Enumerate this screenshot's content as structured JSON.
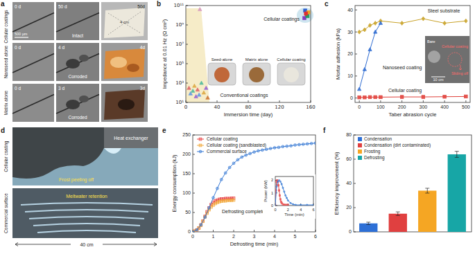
{
  "figure": {
    "panel_labels": [
      "a",
      "b",
      "c",
      "d",
      "e",
      "f"
    ],
    "panel_a": {
      "row_labels": [
        "Cellular coatings",
        "Nanoseed alone",
        "Matrix alone"
      ],
      "rows": [
        [
          "0 d",
          "50 d",
          "Intact",
          "50d"
        ],
        [
          "0 d",
          "4 d",
          "Corroded",
          "4d"
        ],
        [
          "0 d",
          "3 d",
          "Corroded",
          "3d"
        ]
      ],
      "scale_bars": [
        "500 µm",
        "4 cm"
      ]
    },
    "panel_d": {
      "row_labels": [
        "Cellular coating",
        "Commercial surface"
      ],
      "annotations": [
        "Heat exchanger",
        "Frost peeling off",
        "Meltwater retention"
      ],
      "scale_bar": "40 cm"
    }
  },
  "chart_data": [
    {
      "type": "scatter",
      "x_label": "Immersion time (day)",
      "y_label": "Impedance at 0.01 Hz (Ω cm²)",
      "log": "y",
      "xlim": [
        0,
        160
      ],
      "xticks": [
        0,
        40,
        80,
        120,
        160
      ],
      "ylim": [
        10,
        100000000000.0
      ],
      "yticks": [
        {
          "value": 10,
          "label": "10¹"
        },
        {
          "value": 1000,
          "label": "10³"
        },
        {
          "value": 100000,
          "label": "10⁵"
        },
        {
          "value": 10000000,
          "label": "10⁷"
        },
        {
          "value": 1000000000,
          "label": "10⁹"
        },
        {
          "value": 100000000000,
          "label": "10¹¹"
        }
      ],
      "annotations": [
        "Seed-alone",
        "Matrix alone",
        "Cellular coating"
      ],
      "series": [
        {
          "name": "Conventional coatings",
          "marker": "triangle",
          "colors": [
            "#d9a0c0",
            "#e07070",
            "#70a0e0",
            "#60c0a0",
            "#e0b050",
            "#a070d0",
            "#e07070",
            "#70a0e0",
            "#60c0a0",
            "#e0b050",
            "#a070d0",
            "#d08040"
          ],
          "x": [
            18,
            4,
            6,
            9,
            11,
            13,
            15,
            17,
            20,
            23,
            26,
            28
          ],
          "values": [
            40000000000,
            300,
            80,
            150,
            500,
            40,
            200,
            60,
            1000,
            100,
            300,
            30
          ]
        },
        {
          "name": "Cellular coatings",
          "marker": "square",
          "colors": [
            "#3060d0",
            "#e03030",
            "#f0a020",
            "#8040c0",
            "#20a060",
            "#e03030"
          ],
          "x": [
            153,
            155,
            157,
            152,
            156,
            154
          ],
          "values": [
            30000000000,
            10000000000,
            20000000000,
            5000000000,
            8000000000,
            15000000000
          ]
        }
      ]
    },
    {
      "type": "line",
      "x_label": "Taber abrasion cycle",
      "y_label": "Mortar adhesion (kPa)",
      "xlim": [
        -20,
        520
      ],
      "xticks": [
        0,
        100,
        200,
        300,
        400,
        500
      ],
      "ylim": [
        -2,
        42
      ],
      "yticks": [
        0,
        10,
        20,
        30,
        40
      ],
      "annotations": [
        "Bare",
        "Cellular coating",
        "Sliding off",
        "10 cm"
      ],
      "series": [
        {
          "name": "Steel substrate",
          "color": "#c9a227",
          "marker": "diamond",
          "x": [
            0,
            25,
            50,
            75,
            100,
            200,
            300,
            400,
            500
          ],
          "values": [
            30,
            31,
            33,
            34,
            35,
            34,
            36,
            34,
            35
          ]
        },
        {
          "name": "Nanoseed coating",
          "color": "#2e6bd1",
          "marker": "triangle",
          "x": [
            0,
            25,
            50,
            75,
            100
          ],
          "values": [
            4,
            13,
            22,
            30,
            34
          ]
        },
        {
          "name": "Cellular coating",
          "color": "#e0403a",
          "marker": "square",
          "x": [
            0,
            25,
            50,
            75,
            100,
            200,
            300,
            400,
            500
          ],
          "values": [
            0.3,
            0.3,
            0.4,
            0.4,
            0.4,
            0.5,
            0.5,
            0.6,
            0.7
          ]
        }
      ]
    },
    {
      "type": "line",
      "legend": "upper left",
      "x_label": "Defrosting time (min)",
      "y_label": "Energy consumption (kJ)",
      "xlim": [
        0,
        6
      ],
      "xticks": [
        0,
        1,
        2,
        3,
        4,
        5,
        6
      ],
      "ylim": [
        0,
        250
      ],
      "yticks": [
        0,
        50,
        100,
        150,
        200,
        250
      ],
      "annotations": [
        "Defrosting complete"
      ],
      "series": [
        {
          "name": "Cellular coating",
          "color": "#e8494a",
          "marker": "square",
          "x": [
            0,
            0.1,
            0.2,
            0.3,
            0.4,
            0.5,
            0.6,
            0.7,
            0.8,
            0.9,
            1.0,
            1.1,
            1.2,
            1.3,
            1.4,
            1.5,
            1.6,
            1.7,
            1.8,
            1.9,
            2.0
          ],
          "values": [
            0,
            2,
            5,
            10,
            18,
            28,
            40,
            52,
            62,
            70,
            76,
            80,
            82,
            84,
            85,
            85,
            86,
            86,
            86,
            87,
            87
          ]
        },
        {
          "name": "Cellular coating (sandblasted)",
          "color": "#f2a93b",
          "marker": "square",
          "x": [
            0,
            0.1,
            0.2,
            0.3,
            0.4,
            0.5,
            0.6,
            0.7,
            0.8,
            0.9,
            1.0,
            1.1,
            1.2,
            1.3,
            1.4,
            1.5,
            1.6,
            1.7,
            1.8,
            1.9,
            2.0
          ],
          "values": [
            0,
            2,
            5,
            10,
            17,
            27,
            38,
            48,
            57,
            64,
            69,
            73,
            76,
            78,
            79,
            80,
            80,
            81,
            81,
            81,
            82
          ]
        },
        {
          "name": "Commercial surface",
          "color": "#3a7bd5",
          "marker": "circle",
          "x": [
            0,
            0.2,
            0.4,
            0.6,
            0.8,
            1.0,
            1.2,
            1.4,
            1.6,
            1.8,
            2.0,
            2.2,
            2.4,
            2.6,
            2.8,
            3.0,
            3.2,
            3.4,
            3.6,
            3.8,
            4.0,
            4.2,
            4.4,
            4.6,
            4.8,
            5.0,
            5.2,
            5.4,
            5.6,
            5.8,
            6.0
          ],
          "values": [
            0,
            5,
            18,
            38,
            62,
            88,
            112,
            135,
            152,
            166,
            177,
            186,
            193,
            198,
            202,
            206,
            209,
            211,
            213,
            215,
            217,
            218,
            220,
            221,
            222,
            224,
            225,
            226,
            227,
            228,
            229
          ]
        }
      ]
    },
    {
      "type": "line",
      "x_label": "Time (min)",
      "y_label": "Power (kW)",
      "xlim": [
        0,
        6
      ],
      "xticks": [
        0,
        2,
        4,
        6
      ],
      "ylim": [
        0,
        2.3
      ],
      "yticks": [
        0,
        1,
        2
      ],
      "series": [
        {
          "color": "#e8494a",
          "marker": "square",
          "x": [
            0,
            0.1,
            0.2,
            0.3,
            0.4,
            0.5,
            0.6,
            0.7,
            0.8,
            0.9,
            1.0,
            1.2,
            1.4,
            1.6,
            1.8,
            2.0
          ],
          "values": [
            0,
            1.2,
            1.9,
            2.0,
            1.9,
            1.6,
            1.2,
            0.8,
            0.5,
            0.3,
            0.2,
            0.1,
            0.05,
            0.05,
            0.05,
            0.05
          ]
        },
        {
          "color": "#3a7bd5",
          "marker": "circle",
          "x": [
            0,
            0.2,
            0.4,
            0.6,
            0.8,
            1.0,
            1.2,
            1.4,
            1.6,
            1.8,
            2.0,
            2.4,
            2.8,
            3.2,
            4,
            5,
            6
          ],
          "values": [
            0,
            1.5,
            1.9,
            2.0,
            1.9,
            1.7,
            1.4,
            1.1,
            0.8,
            0.6,
            0.4,
            0.2,
            0.1,
            0.05,
            0.05,
            0.05,
            0.05
          ]
        }
      ]
    },
    {
      "type": "bar",
      "y_label": "Efficiency improvement (%)",
      "legend": "upper left",
      "tick_labels": "y",
      "ylim": [
        0,
        80
      ],
      "yticks": [
        0,
        20,
        40,
        60,
        80
      ],
      "categories": [
        "Condensation",
        "Condensation (dirt contaminated)",
        "Frosting",
        "Defrosting"
      ],
      "values": [
        7,
        15,
        34,
        64
      ],
      "errors": [
        1,
        1.5,
        2,
        2.5
      ],
      "colors": [
        "#2d6fd6",
        "#e04040",
        "#f5a623",
        "#17a6a6"
      ]
    }
  ]
}
